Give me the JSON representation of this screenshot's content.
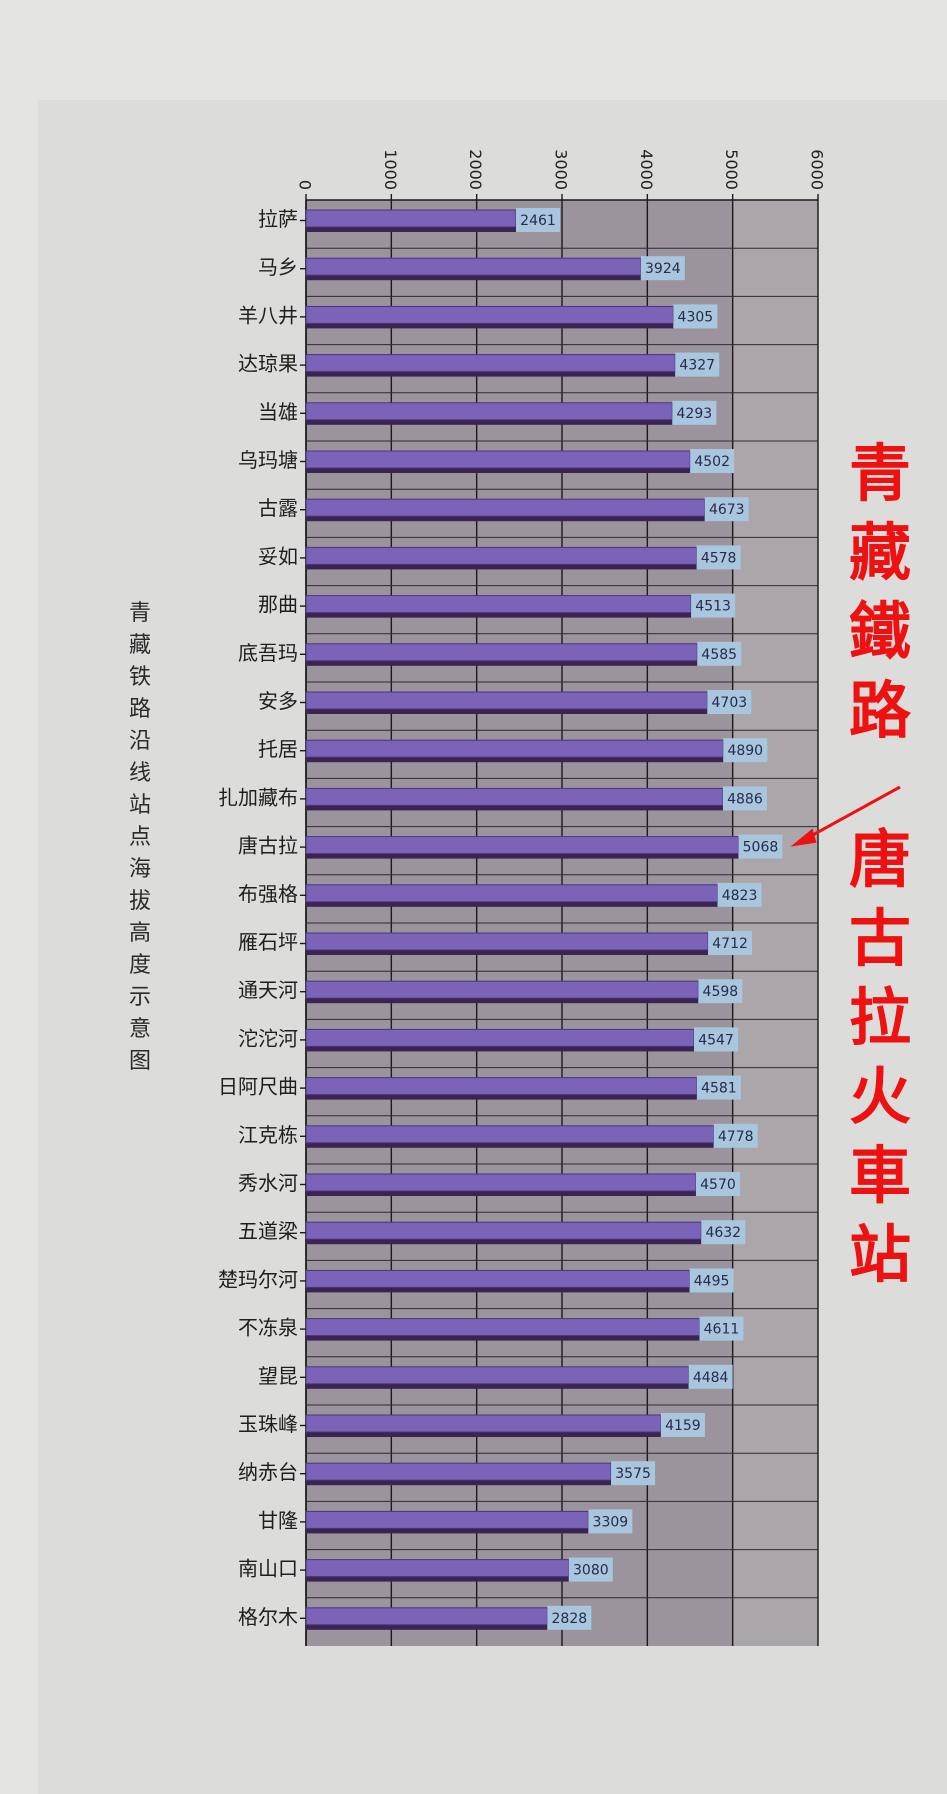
{
  "chart_data": {
    "type": "bar",
    "orientation": "horizontal",
    "title": "青藏铁路沿线站点海拔高度示意图",
    "categories": [
      "拉萨",
      "马乡",
      "羊八井",
      "达琼果",
      "当雄",
      "乌玛塘",
      "古露",
      "妥如",
      "那曲",
      "底吾玛",
      "安多",
      "托居",
      "扎加藏布",
      "唐古拉",
      "布强格",
      "雁石坪",
      "通天河",
      "沱沱河",
      "日阿尺曲",
      "江克栋",
      "秀水河",
      "五道梁",
      "楚玛尔河",
      "不冻泉",
      "望昆",
      "玉珠峰",
      "纳赤台",
      "甘隆",
      "南山口",
      "格尔木"
    ],
    "values": [
      2461,
      3924,
      4305,
      4327,
      4293,
      4502,
      4673,
      4578,
      4513,
      4585,
      4703,
      4890,
      4886,
      5068,
      4823,
      4712,
      4598,
      4547,
      4581,
      4778,
      4570,
      4632,
      4495,
      4611,
      4484,
      4159,
      3575,
      3309,
      3080,
      2828
    ],
    "xlim": [
      0,
      6000
    ],
    "xticks": [
      0,
      1000,
      2000,
      3000,
      4000,
      5000,
      6000
    ],
    "grid": true,
    "colors": {
      "bar": "#7b63b8",
      "bar_shadow": "#3a2450",
      "label_bg": "#a8c6de",
      "plot_bg": "#9c949c",
      "plot_bg_light": "#aba6a9",
      "annotation": "#ee1111"
    }
  },
  "annotations": {
    "railway": "青藏鐵路",
    "station": "唐古拉火車站"
  }
}
